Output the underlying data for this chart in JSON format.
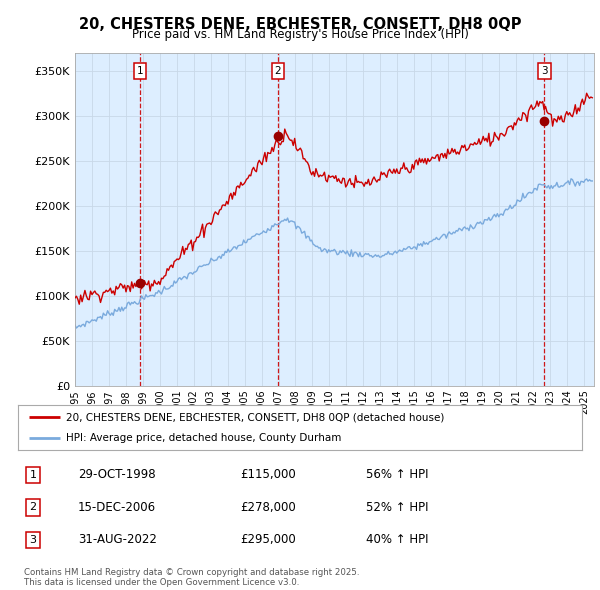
{
  "title": "20, CHESTERS DENE, EBCHESTER, CONSETT, DH8 0QP",
  "subtitle": "Price paid vs. HM Land Registry's House Price Index (HPI)",
  "ylabel_ticks": [
    "£0",
    "£50K",
    "£100K",
    "£150K",
    "£200K",
    "£250K",
    "£300K",
    "£350K"
  ],
  "ytick_vals": [
    0,
    50000,
    100000,
    150000,
    200000,
    250000,
    300000,
    350000
  ],
  "ylim": [
    0,
    370000
  ],
  "xlim_start": 1995.0,
  "xlim_end": 2025.6,
  "sale_dates": [
    1998.83,
    2006.96,
    2022.67
  ],
  "sale_prices": [
    115000,
    278000,
    295000
  ],
  "sale_labels": [
    "1",
    "2",
    "3"
  ],
  "sale_info": [
    {
      "num": "1",
      "date": "29-OCT-1998",
      "price": "£115,000",
      "hpi": "56% ↑ HPI"
    },
    {
      "num": "2",
      "date": "15-DEC-2006",
      "price": "£278,000",
      "hpi": "52% ↑ HPI"
    },
    {
      "num": "3",
      "date": "31-AUG-2022",
      "price": "£295,000",
      "hpi": "40% ↑ HPI"
    }
  ],
  "legend_line1": "20, CHESTERS DENE, EBCHESTER, CONSETT, DH8 0QP (detached house)",
  "legend_line2": "HPI: Average price, detached house, County Durham",
  "footer": "Contains HM Land Registry data © Crown copyright and database right 2025.\nThis data is licensed under the Open Government Licence v3.0.",
  "hpi_color": "#7aaadd",
  "price_color": "#cc0000",
  "vline_color": "#cc0000",
  "chart_bg_color": "#ddeeff",
  "plot_bg_color": "#ffffff"
}
